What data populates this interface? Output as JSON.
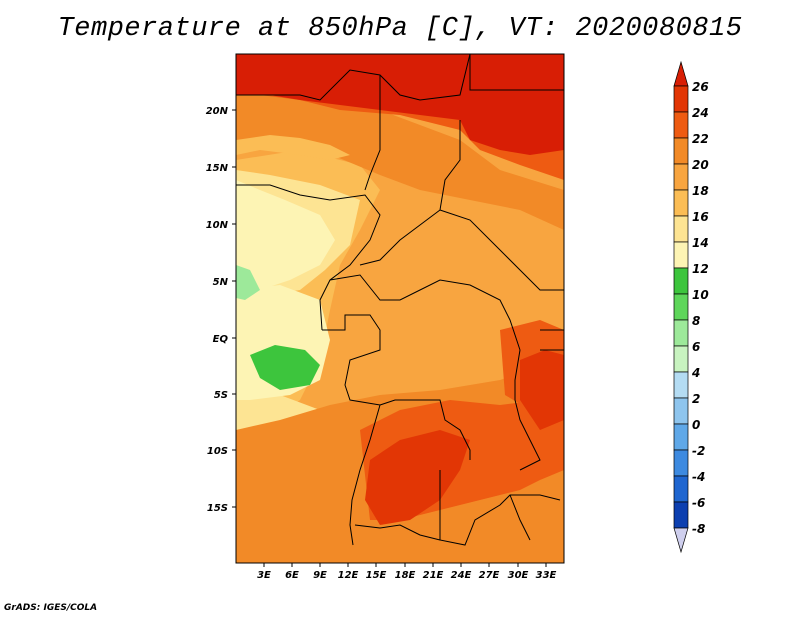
{
  "title": "Temperature at 850hPa [C], VT: 2020080815",
  "credit": "GrADS: IGES/COLA",
  "colors": {
    "c_lt14": "#fdf4b4",
    "c_14_16": "#fde493",
    "c_16_18": "#fbbd55",
    "c_18_20": "#f8a540",
    "c_20_22": "#f28a27",
    "c_22_24": "#ee5b12",
    "c_24_26": "#e23605",
    "c_gt26": "#d81e05",
    "green_10_12": "#5ed65a",
    "green_12_14": "#3dc53d",
    "green_8_10": "#9de99a",
    "border": "#000000"
  },
  "map": {
    "lat_labels": [
      "20N",
      "15N",
      "10N",
      "5N",
      "EQ",
      "5S",
      "10S",
      "15S"
    ],
    "lon_labels": [
      "3E",
      "6E",
      "9E",
      "12E",
      "15E",
      "18E",
      "21E",
      "24E",
      "27E",
      "30E",
      "33E"
    ]
  },
  "colorbar": {
    "levels": [
      "26",
      "24",
      "22",
      "20",
      "18",
      "16",
      "14",
      "12",
      "10",
      "8",
      "6",
      "4",
      "2",
      "0",
      "-2",
      "-4",
      "-6",
      "-8"
    ],
    "colors": [
      "#d81e05",
      "#e23605",
      "#ee5b12",
      "#f28a27",
      "#f8a540",
      "#fbbd55",
      "#fde493",
      "#fdf4b4",
      "#3dc53d",
      "#5ed65a",
      "#9de99a",
      "#c8f3c0",
      "#b4dcf3",
      "#8ec5ee",
      "#5fa8e8",
      "#3d8ae0",
      "#1f66d0",
      "#0c3fb0",
      "#082a8a",
      "#cfcfee"
    ]
  }
}
